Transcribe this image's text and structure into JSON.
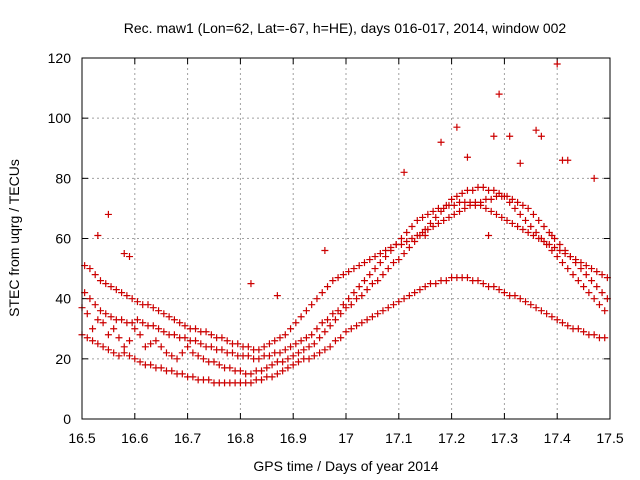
{
  "chart_data": {
    "type": "scatter",
    "title": "Rec. maw1 (Lon=62, Lat=-67, h=HE), days 016-017, 2014, window 002",
    "xlabel": "GPS time / Days of year 2014",
    "ylabel": "STEC from uqrg / TECUs",
    "xlim": [
      16.5,
      17.5
    ],
    "ylim": [
      0,
      120
    ],
    "xticks": [
      "16.5",
      "16.6",
      "16.7",
      "16.8",
      "16.9",
      "17",
      "17.1",
      "17.2",
      "17.3",
      "17.4",
      "17.5"
    ],
    "yticks": [
      "0",
      "20",
      "40",
      "60",
      "80",
      "100",
      "120"
    ],
    "grid": true,
    "marker": "+",
    "color": "#cc0000",
    "series": [
      {
        "x": [
          16.5,
          16.51,
          16.52,
          16.53,
          16.54,
          16.55,
          16.56,
          16.57,
          16.58,
          16.59,
          16.6,
          16.61,
          16.62,
          16.63,
          16.64,
          16.65,
          16.66,
          16.67,
          16.68,
          16.69,
          16.7,
          16.71,
          16.72,
          16.73,
          16.74,
          16.75,
          16.76,
          16.77,
          16.78,
          16.79,
          16.8,
          16.81,
          16.82,
          16.83,
          16.84,
          16.85,
          16.86,
          16.87,
          16.88,
          16.89,
          16.9,
          16.91,
          16.92,
          16.93,
          16.94,
          16.95,
          16.96,
          16.97,
          16.98,
          16.99,
          17.0,
          17.01,
          17.02,
          17.03,
          17.04,
          17.05,
          17.06,
          17.07,
          17.08,
          17.09,
          17.1,
          17.11,
          17.12,
          17.13,
          17.14,
          17.15,
          17.16,
          17.17,
          17.18,
          17.19,
          17.2,
          17.21,
          17.22,
          17.23,
          17.24,
          17.25,
          17.26,
          17.27,
          17.28,
          17.29,
          17.3,
          17.31,
          17.32,
          17.33,
          17.34,
          17.35,
          17.36,
          17.37,
          17.38,
          17.39,
          17.4,
          17.41,
          17.42,
          17.43,
          17.44,
          17.45,
          17.46,
          17.47,
          17.48,
          17.49,
          16.5,
          16.51,
          16.52,
          16.53,
          16.54,
          16.55,
          16.56,
          16.57,
          16.58,
          16.59,
          16.6,
          16.61,
          16.62,
          16.63,
          16.64,
          16.65,
          16.66,
          16.67,
          16.68,
          16.69,
          16.7,
          16.71,
          16.72,
          16.73,
          16.74,
          16.75,
          16.76,
          16.77,
          16.78,
          16.79,
          16.8,
          16.81,
          16.82,
          16.83,
          16.84,
          16.85,
          16.86,
          16.87,
          16.88,
          16.89,
          16.9,
          16.91,
          16.92,
          16.93,
          16.94,
          16.95,
          16.96,
          16.97,
          16.98,
          16.99,
          17.0,
          17.01,
          17.02,
          17.03,
          17.04,
          17.05,
          17.06,
          17.07,
          17.08,
          17.09,
          17.1,
          17.11,
          17.12,
          17.13,
          17.14,
          17.15,
          17.16,
          17.17,
          17.18,
          17.19,
          17.2,
          17.21,
          17.22,
          17.23,
          17.24,
          17.25,
          17.26,
          17.27,
          17.28,
          17.29,
          17.3,
          17.31,
          17.32,
          17.33,
          17.34,
          17.35,
          17.36,
          17.37,
          17.38,
          17.39,
          17.4,
          17.41,
          17.42,
          17.43,
          17.44,
          17.45,
          17.46,
          17.47,
          17.48,
          17.49,
          16.505,
          16.515,
          16.525,
          16.535,
          16.545,
          16.555,
          16.565,
          16.575,
          16.585,
          16.595,
          16.605,
          16.615,
          16.625,
          16.635,
          16.645,
          16.655,
          16.665,
          16.675,
          16.685,
          16.695,
          16.705,
          16.715,
          16.725,
          16.735,
          16.745,
          16.755,
          16.765,
          16.775,
          16.785,
          16.795,
          16.805,
          16.815,
          16.825,
          16.835,
          16.845,
          16.855,
          16.865,
          16.875,
          16.885,
          16.895,
          16.905,
          16.915,
          16.925,
          16.935,
          16.945,
          16.955,
          16.965,
          16.975,
          16.985,
          16.995,
          17.005,
          17.015,
          17.025,
          17.035,
          17.045,
          17.055,
          17.065,
          17.075,
          17.085,
          17.095,
          17.105,
          17.115,
          17.125,
          17.135,
          17.145,
          17.155,
          17.165,
          17.175,
          17.185,
          17.195,
          17.205,
          17.215,
          17.225,
          17.235,
          17.245,
          17.255,
          17.265,
          17.275,
          17.285,
          17.295,
          17.305,
          17.315,
          17.325,
          17.335,
          17.345,
          17.355,
          17.365,
          17.375,
          17.385,
          17.395,
          17.405,
          17.415,
          17.425,
          17.435,
          17.445,
          17.455,
          17.465,
          17.475,
          17.485,
          17.495,
          16.505,
          16.515,
          16.525,
          16.535,
          16.545,
          16.555,
          16.565,
          16.575,
          16.585,
          16.595,
          16.605,
          16.615,
          16.625,
          16.635,
          16.645,
          16.655,
          16.665,
          16.675,
          16.685,
          16.695,
          16.705,
          16.715,
          16.725,
          16.735,
          16.745,
          16.755,
          16.765,
          16.775,
          16.785,
          16.795,
          16.805,
          16.815,
          16.825,
          16.835,
          16.845,
          16.855,
          16.865,
          16.875,
          16.885,
          16.895,
          16.905,
          16.915,
          16.925,
          16.935,
          16.945,
          16.955,
          16.965,
          16.975,
          16.985,
          16.995,
          17.005,
          17.015,
          17.025,
          17.035,
          17.045,
          17.055,
          17.065,
          17.075,
          17.085,
          17.095,
          17.105,
          17.115,
          17.125,
          17.135,
          17.145,
          17.155,
          17.165,
          17.175,
          17.185,
          17.195,
          17.205,
          17.215,
          17.225,
          17.235,
          17.245,
          17.255,
          17.265,
          17.275,
          17.285,
          17.295,
          17.305,
          17.315,
          17.325,
          17.335,
          17.345,
          17.355,
          17.365,
          17.375,
          17.385,
          17.395,
          17.405,
          17.415,
          17.425,
          17.435,
          17.445,
          17.455,
          17.465,
          17.475,
          17.485,
          17.495,
          16.55,
          16.58,
          16.59,
          16.53,
          16.82,
          16.87,
          16.96,
          17.11,
          17.18,
          17.21,
          17.23,
          17.28,
          17.29,
          17.31,
          17.33,
          17.36,
          17.37,
          17.4,
          17.41,
          17.42,
          17.47,
          17.39,
          17.27,
          17.15
        ],
        "y": [
          37,
          35,
          30,
          33,
          32,
          28,
          30,
          27,
          24,
          26,
          30,
          28,
          24,
          25,
          26,
          24,
          22,
          21,
          20,
          22,
          24,
          22,
          21,
          20,
          19,
          19,
          18,
          17,
          17,
          16,
          16,
          15,
          15,
          16,
          16,
          17,
          18,
          19,
          19,
          20,
          21,
          22,
          23,
          24,
          25,
          27,
          29,
          31,
          33,
          35,
          37,
          38,
          40,
          41,
          43,
          45,
          46,
          48,
          50,
          52,
          53,
          55,
          57,
          59,
          61,
          63,
          65,
          67,
          69,
          71,
          73,
          74,
          75,
          76,
          76,
          77,
          77,
          76,
          76,
          75,
          74,
          72,
          70,
          68,
          66,
          64,
          62,
          60,
          58,
          56,
          54,
          52,
          50,
          48,
          46,
          44,
          42,
          40,
          38,
          36,
          28,
          27,
          26,
          25,
          24,
          23,
          22,
          21,
          22,
          21,
          20,
          19,
          18,
          18,
          17,
          17,
          16,
          16,
          15,
          15,
          14,
          14,
          13,
          13,
          13,
          12,
          12,
          12,
          12,
          12,
          12,
          12,
          12,
          13,
          13,
          14,
          14,
          15,
          16,
          17,
          18,
          19,
          20,
          20,
          21,
          22,
          23,
          24,
          26,
          27,
          29,
          30,
          31,
          32,
          33,
          34,
          35,
          36,
          37,
          38,
          39,
          40,
          41,
          42,
          43,
          44,
          45,
          45,
          46,
          46,
          47,
          47,
          47,
          47,
          46,
          46,
          45,
          44,
          44,
          43,
          42,
          41,
          41,
          40,
          39,
          38,
          37,
          36,
          35,
          34,
          33,
          32,
          31,
          30,
          30,
          29,
          28,
          28,
          27,
          27,
          42,
          40,
          38,
          36,
          35,
          34,
          33,
          33,
          32,
          32,
          33,
          32,
          31,
          31,
          30,
          29,
          28,
          28,
          27,
          27,
          26,
          26,
          25,
          24,
          24,
          23,
          23,
          22,
          22,
          21,
          21,
          21,
          20,
          20,
          21,
          21,
          22,
          22,
          23,
          24,
          25,
          26,
          27,
          28,
          30,
          32,
          33,
          35,
          36,
          38,
          40,
          42,
          44,
          46,
          48,
          50,
          52,
          54,
          56,
          58,
          60,
          62,
          64,
          66,
          67,
          68,
          69,
          70,
          70,
          71,
          71,
          72,
          72,
          72,
          71,
          71,
          70,
          69,
          68,
          67,
          66,
          65,
          64,
          63,
          62,
          61,
          60,
          59,
          58,
          57,
          56,
          55,
          54,
          53,
          52,
          51,
          50,
          49,
          48,
          47,
          51,
          50,
          48,
          46,
          45,
          44,
          43,
          42,
          41,
          40,
          39,
          38,
          38,
          37,
          36,
          35,
          34,
          33,
          32,
          31,
          30,
          30,
          29,
          29,
          28,
          27,
          27,
          26,
          25,
          25,
          24,
          24,
          23,
          23,
          24,
          25,
          26,
          27,
          28,
          30,
          32,
          34,
          36,
          38,
          40,
          42,
          44,
          46,
          47,
          48,
          49,
          50,
          51,
          52,
          53,
          54,
          55,
          56,
          57,
          58,
          58,
          59,
          60,
          61,
          62,
          63,
          64,
          65,
          66,
          67,
          68,
          69,
          70,
          71,
          72,
          72,
          73,
          73,
          74,
          74,
          74,
          73,
          72,
          71,
          70,
          68,
          66,
          64,
          62,
          60,
          58,
          56,
          54,
          52,
          50,
          48,
          46,
          44,
          42,
          40,
          68,
          55,
          54,
          61,
          45,
          41,
          56,
          82,
          92,
          97,
          87,
          94,
          108,
          94,
          85,
          96,
          94,
          118,
          86,
          86,
          80,
          61,
          61,
          61
        ]
      }
    ]
  }
}
